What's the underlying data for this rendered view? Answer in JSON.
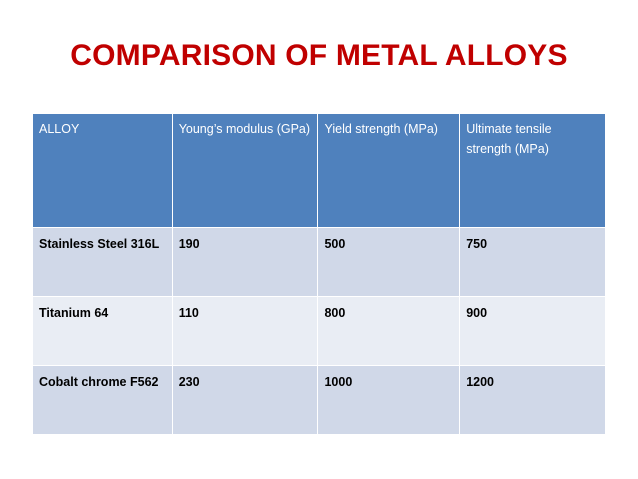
{
  "slide": {
    "title": "COMPARISON OF METAL ALLOYS"
  },
  "table": {
    "headers": [
      "ALLOY",
      "Young’s modulus (GPa)",
      "Yield strength (MPa)",
      "Ultimate tensile strength (MPa)"
    ],
    "rows": [
      [
        "Stainless Steel 316L",
        "190",
        "500",
        "750"
      ],
      [
        "Titanium 64",
        "110",
        "800",
        "900"
      ],
      [
        "Cobalt chrome F562",
        "230",
        "1000",
        "1200"
      ]
    ]
  },
  "colors": {
    "title": "#c00000",
    "header_bg": "#4f81bd",
    "row_band_a": "#d0d8e8",
    "row_band_b": "#e9edf4"
  }
}
